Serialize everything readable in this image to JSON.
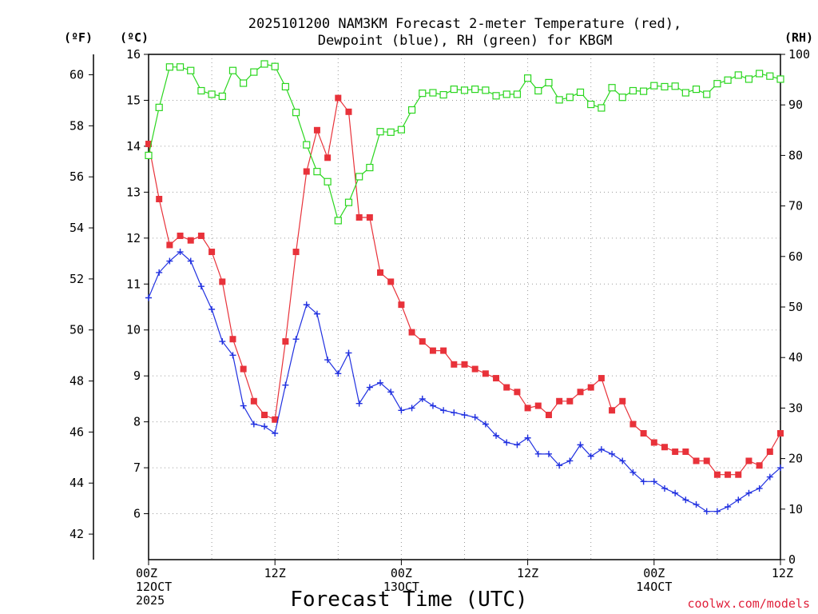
{
  "chart_data": {
    "type": "line",
    "title_line1": "2025101200 NAM3KM Forecast 2-meter Temperature (red),",
    "title_line2": "Dewpoint (blue), RH (green) for KBGM",
    "xlabel": "Forecast Time (UTC)",
    "credit": "coolwx.com/models",
    "unit_f": "(ºF)",
    "unit_c": "(ºC)",
    "unit_rh": "(RH)",
    "x_hours_range": [
      0,
      60
    ],
    "celsius_range": [
      5,
      16
    ],
    "fahrenheit_range": [
      41,
      60.8
    ],
    "rh_range": [
      0,
      100
    ],
    "celsius_ticks": [
      "6",
      "7",
      "8",
      "9",
      "10",
      "11",
      "12",
      "13",
      "14",
      "15",
      "16"
    ],
    "fahrenheit_ticks": [
      "42",
      "44",
      "46",
      "48",
      "50",
      "52",
      "54",
      "56",
      "58",
      "60"
    ],
    "rh_ticks": [
      "0",
      "10",
      "20",
      "30",
      "40",
      "50",
      "60",
      "70",
      "80",
      "90",
      "100"
    ],
    "x_ticks": [
      {
        "hour": 0,
        "lines": [
          "00Z",
          "12OCT",
          "2025"
        ]
      },
      {
        "hour": 12,
        "lines": [
          "12Z"
        ]
      },
      {
        "hour": 24,
        "lines": [
          "00Z",
          "13OCT"
        ]
      },
      {
        "hour": 36,
        "lines": [
          "12Z"
        ]
      },
      {
        "hour": 48,
        "lines": [
          "00Z",
          "14OCT"
        ]
      },
      {
        "hour": 60,
        "lines": [
          "12Z"
        ]
      }
    ],
    "series": [
      {
        "name": "2-meter Temperature",
        "axis": "celsius",
        "color": "#e8323a",
        "marker": "filled-square",
        "x": [
          0,
          1,
          2,
          3,
          4,
          5,
          6,
          7,
          8,
          9,
          10,
          11,
          12,
          13,
          14,
          15,
          16,
          17,
          18,
          19,
          20,
          21,
          22,
          23,
          24,
          25,
          26,
          27,
          28,
          29,
          30,
          31,
          32,
          33,
          34,
          35,
          36,
          37,
          38,
          39,
          40,
          41,
          42,
          43,
          44,
          45,
          46,
          47,
          48,
          49,
          50,
          51,
          52,
          53,
          54,
          55,
          56,
          57,
          58,
          59,
          60
        ],
        "values": [
          14.05,
          12.85,
          11.85,
          12.05,
          11.95,
          12.05,
          11.7,
          11.05,
          9.8,
          9.15,
          8.45,
          8.15,
          8.05,
          9.75,
          11.7,
          13.45,
          14.35,
          13.75,
          15.05,
          14.75,
          12.45,
          12.45,
          11.25,
          11.05,
          10.55,
          9.95,
          9.75,
          9.55,
          9.55,
          9.25,
          9.25,
          9.15,
          9.05,
          8.95,
          8.75,
          8.65,
          8.3,
          8.35,
          8.15,
          8.45,
          8.45,
          8.65,
          8.75,
          8.95,
          8.25,
          8.45,
          7.95,
          7.75,
          7.55,
          7.45,
          7.35,
          7.35,
          7.15,
          7.15,
          6.85,
          6.85,
          6.85,
          7.15,
          7.05,
          7.35,
          7.75
        ]
      },
      {
        "name": "Dewpoint",
        "axis": "celsius",
        "color": "#2030e0",
        "marker": "plus",
        "x": [
          0,
          1,
          2,
          3,
          4,
          5,
          6,
          7,
          8,
          9,
          10,
          11,
          12,
          13,
          14,
          15,
          16,
          17,
          18,
          19,
          20,
          21,
          22,
          23,
          24,
          25,
          26,
          27,
          28,
          29,
          30,
          31,
          32,
          33,
          34,
          35,
          36,
          37,
          38,
          39,
          40,
          41,
          42,
          43,
          44,
          45,
          46,
          47,
          48,
          49,
          50,
          51,
          52,
          53,
          54,
          55,
          56,
          57,
          58,
          59,
          60
        ],
        "values": [
          10.7,
          11.25,
          11.5,
          11.7,
          11.5,
          10.95,
          10.45,
          9.75,
          9.45,
          8.35,
          7.95,
          7.9,
          7.75,
          8.8,
          9.8,
          10.55,
          10.35,
          9.35,
          9.05,
          9.5,
          8.4,
          8.75,
          8.85,
          8.65,
          8.25,
          8.3,
          8.5,
          8.35,
          8.25,
          8.2,
          8.15,
          8.1,
          7.95,
          7.7,
          7.55,
          7.5,
          7.65,
          7.3,
          7.3,
          7.05,
          7.15,
          7.5,
          7.25,
          7.4,
          7.3,
          7.15,
          6.9,
          6.7,
          6.7,
          6.55,
          6.45,
          6.3,
          6.2,
          6.05,
          6.05,
          6.15,
          6.3,
          6.45,
          6.55,
          6.8,
          7.0
        ]
      },
      {
        "name": "RH",
        "axis": "rh",
        "color": "#2bd61f",
        "marker": "open-square",
        "x": [
          0,
          1,
          2,
          3,
          4,
          5,
          6,
          7,
          8,
          9,
          10,
          11,
          12,
          13,
          14,
          15,
          16,
          17,
          18,
          19,
          20,
          21,
          22,
          23,
          24,
          25,
          26,
          27,
          28,
          29,
          30,
          31,
          32,
          33,
          34,
          35,
          36,
          37,
          38,
          39,
          40,
          41,
          42,
          43,
          44,
          45,
          46,
          47,
          48,
          49,
          50,
          51,
          52,
          53,
          54,
          55,
          56,
          57,
          58,
          59,
          60
        ],
        "values": [
          80,
          89.5,
          97.5,
          97.5,
          96.8,
          92.8,
          92.1,
          91.7,
          96.8,
          94.3,
          96.5,
          98.1,
          97.6,
          93.6,
          88.5,
          82.1,
          76.8,
          74.8,
          67.1,
          70.7,
          75.8,
          77.6,
          84.7,
          84.6,
          85.1,
          89,
          92.3,
          92.4,
          92,
          93.1,
          92.9,
          93.1,
          92.9,
          91.8,
          92.1,
          92.1,
          95.3,
          92.8,
          94.4,
          91,
          91.5,
          92.5,
          90.1,
          89.4,
          93.4,
          91.5,
          92.8,
          92.7,
          93.8,
          93.6,
          93.7,
          92.4,
          93.1,
          92.1,
          94.2,
          94.9,
          95.9,
          95.1,
          96.2,
          95.7,
          95.1
        ]
      }
    ]
  }
}
